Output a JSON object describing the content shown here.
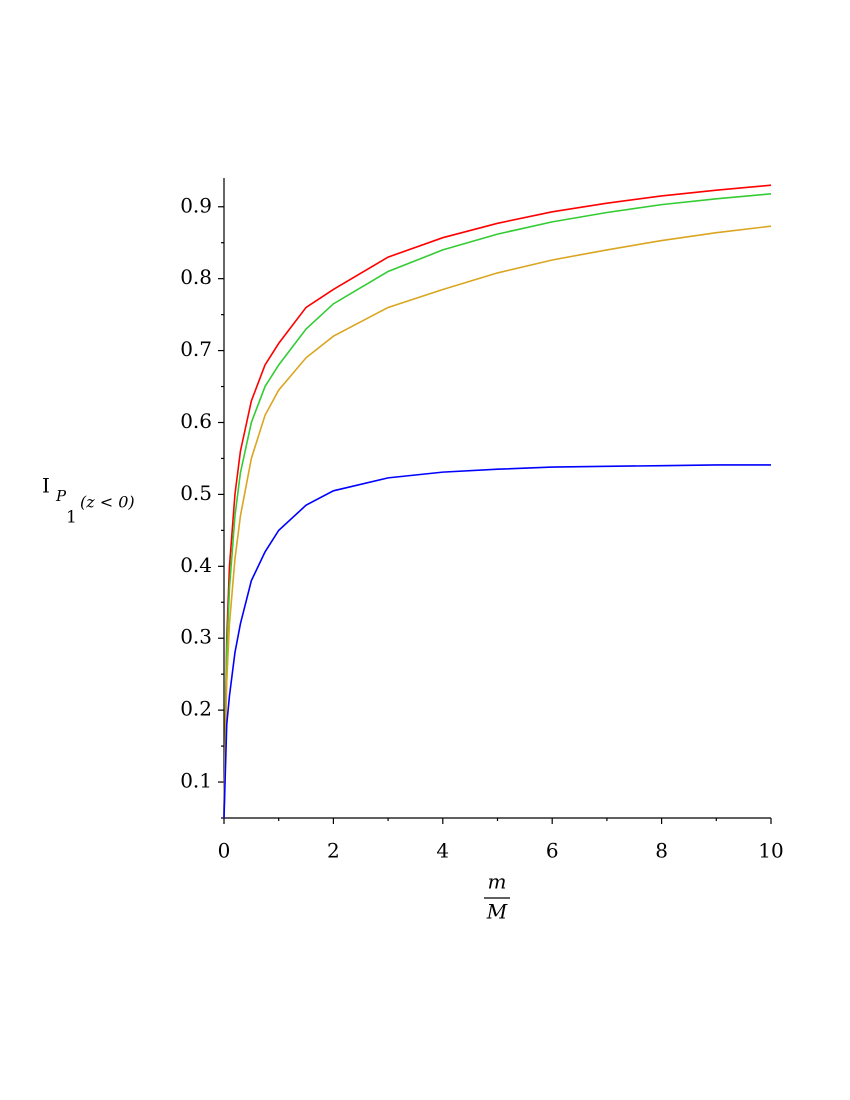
{
  "chart_data": {
    "type": "line",
    "ylabel": {
      "base": "I",
      "sub": "P",
      "subsub": "1",
      "arg": "(z < 0)"
    },
    "xlabel": {
      "numerator": "m",
      "denominator": "M"
    },
    "x": [
      0,
      0.05,
      0.1,
      0.2,
      0.3,
      0.5,
      0.75,
      1,
      1.5,
      2,
      3,
      4,
      5,
      6,
      7,
      8,
      9,
      10
    ],
    "series": [
      {
        "color": "#ff0000",
        "values": [
          0.05,
          0.3,
          0.4,
          0.5,
          0.56,
          0.63,
          0.68,
          0.71,
          0.76,
          0.785,
          0.83,
          0.857,
          0.877,
          0.893,
          0.905,
          0.915,
          0.923,
          0.93
        ]
      },
      {
        "color": "#33cc33",
        "values": [
          0.05,
          0.28,
          0.37,
          0.47,
          0.53,
          0.6,
          0.65,
          0.68,
          0.73,
          0.765,
          0.81,
          0.84,
          0.862,
          0.879,
          0.892,
          0.903,
          0.911,
          0.918
        ]
      },
      {
        "color": "#daa520",
        "values": [
          0.05,
          0.24,
          0.32,
          0.41,
          0.47,
          0.55,
          0.61,
          0.645,
          0.69,
          0.72,
          0.76,
          0.785,
          0.808,
          0.826,
          0.84,
          0.853,
          0.864,
          0.873
        ]
      },
      {
        "color": "#0000ff",
        "values": [
          0.05,
          0.18,
          0.22,
          0.28,
          0.32,
          0.38,
          0.42,
          0.45,
          0.485,
          0.505,
          0.523,
          0.531,
          0.535,
          0.538,
          0.539,
          0.54,
          0.541,
          0.541
        ]
      }
    ],
    "xlim": [
      0,
      10
    ],
    "ylim": [
      0.05,
      0.94
    ],
    "xticks": [
      0,
      2,
      4,
      6,
      8,
      10
    ],
    "yticks": [
      0.1,
      0.2,
      0.3,
      0.4,
      0.5,
      0.6,
      0.7,
      0.8,
      0.9
    ],
    "xminorticks": [
      1,
      3,
      5,
      7,
      9
    ],
    "yminorticks": [
      0.05,
      0.15,
      0.25,
      0.35,
      0.45,
      0.55,
      0.65,
      0.75,
      0.85
    ]
  }
}
